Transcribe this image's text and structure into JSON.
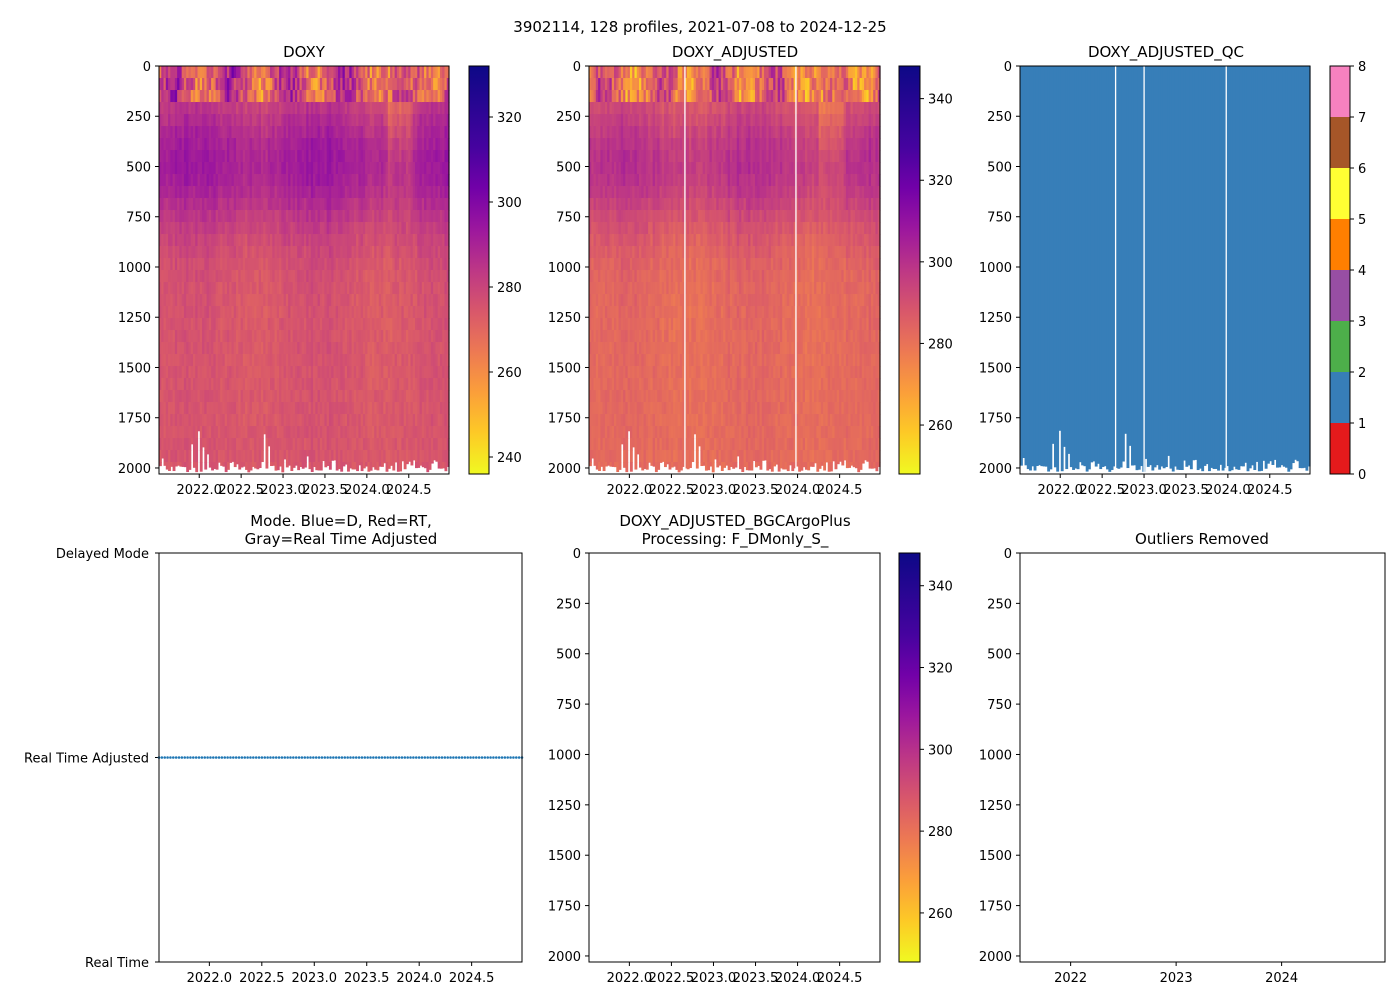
{
  "figure": {
    "suptitle": "3902114, 128 profiles, 2021-07-08 to 2024-12-25",
    "colors": {
      "qc_blue": "#377eb8",
      "mode_line": "#1f77b4",
      "background": "#ffffff",
      "spine": "#000000"
    }
  },
  "chart_data": [
    {
      "id": "doxy",
      "type": "heatmap",
      "title": "DOXY",
      "xlabel": "",
      "ylabel": "",
      "xlim": [
        2021.52,
        2024.98
      ],
      "ylim": [
        2030,
        0
      ],
      "xticks": [
        2022.0,
        2022.5,
        2023.0,
        2023.5,
        2024.0,
        2024.5
      ],
      "xtick_labels": [
        "2022.0",
        "2022.5",
        "2023.0",
        "2023.5",
        "2024.0",
        "2024.5"
      ],
      "yticks": [
        0,
        250,
        500,
        750,
        1000,
        1250,
        1500,
        1750,
        2000
      ],
      "ytick_labels": [
        "0",
        "250",
        "500",
        "750",
        "1000",
        "1250",
        "1500",
        "1750",
        "2000"
      ],
      "colorbar": {
        "cmap": "plasma_r",
        "vmin": 236,
        "vmax": 332,
        "ticks": [
          240,
          260,
          280,
          300,
          320
        ],
        "tick_labels": [
          "240",
          "260",
          "280",
          "300",
          "320"
        ]
      },
      "deep_value": 279,
      "surface_low_value": 265,
      "gaps_x": []
    },
    {
      "id": "doxy_adjusted",
      "type": "heatmap",
      "title": "DOXY_ADJUSTED",
      "xlabel": "",
      "ylabel": "",
      "xlim": [
        2021.52,
        2024.98
      ],
      "ylim": [
        2030,
        0
      ],
      "xticks": [
        2022.0,
        2022.5,
        2023.0,
        2023.5,
        2024.0,
        2024.5
      ],
      "xtick_labels": [
        "2022.0",
        "2022.5",
        "2023.0",
        "2023.5",
        "2024.0",
        "2024.5"
      ],
      "yticks": [
        0,
        250,
        500,
        750,
        1000,
        1250,
        1500,
        1750,
        2000
      ],
      "ytick_labels": [
        "0",
        "250",
        "500",
        "750",
        "1000",
        "1250",
        "1500",
        "1750",
        "2000"
      ],
      "colorbar": {
        "cmap": "plasma_r",
        "vmin": 248,
        "vmax": 348,
        "ticks": [
          260,
          280,
          300,
          320,
          340
        ],
        "tick_labels": [
          "260",
          "280",
          "300",
          "320",
          "340"
        ]
      },
      "deep_value": 286,
      "surface_low_value": 270,
      "gaps_x": [
        2022.66,
        2023.98
      ]
    },
    {
      "id": "doxy_adjusted_qc",
      "type": "heatmap",
      "title": "DOXY_ADJUSTED_QC",
      "xlabel": "",
      "ylabel": "",
      "xlim": [
        2021.52,
        2024.98
      ],
      "ylim": [
        2030,
        0
      ],
      "xticks": [
        2022.0,
        2022.5,
        2023.0,
        2023.5,
        2024.0,
        2024.5
      ],
      "xtick_labels": [
        "2022.0",
        "2022.5",
        "2023.0",
        "2023.5",
        "2024.0",
        "2024.5"
      ],
      "yticks": [
        0,
        250,
        500,
        750,
        1000,
        1250,
        1500,
        1750,
        2000
      ],
      "ytick_labels": [
        "0",
        "250",
        "500",
        "750",
        "1000",
        "1250",
        "1500",
        "1750",
        "2000"
      ],
      "qc_value": 1,
      "colorbar": {
        "cmap": "Set1 (discrete QC)",
        "vmin": 0,
        "vmax": 8,
        "ticks": [
          0,
          1,
          2,
          3,
          4,
          5,
          6,
          7,
          8
        ],
        "tick_labels": [
          "0",
          "1",
          "2",
          "3",
          "4",
          "5",
          "6",
          "7",
          "8"
        ],
        "segment_colors": [
          "#e41a1c",
          "#377eb8",
          "#4daf4a",
          "#984ea3",
          "#ff7f00",
          "#ffff33",
          "#a65628",
          "#f781bf",
          "#999999"
        ]
      },
      "gaps_x": [
        2022.66,
        2023.0,
        2023.98
      ]
    },
    {
      "id": "mode",
      "type": "scatter",
      "title": "Mode. Blue=D, Red=RT,",
      "title_line2": "Gray=Real Time Adjusted",
      "xlabel": "",
      "ylabel": "",
      "xlim": [
        2021.52,
        2024.98
      ],
      "xticks": [
        2022.0,
        2022.5,
        2023.0,
        2023.5,
        2024.0,
        2024.5
      ],
      "xtick_labels": [
        "2022.0",
        "2022.5",
        "2023.0",
        "2023.5",
        "2024.0",
        "2024.5"
      ],
      "y_categories": [
        "Delayed Mode",
        "Real Time Adjusted",
        "Real Time"
      ],
      "series": [
        {
          "name": "Real Time Adjusted",
          "y_category": "Real Time Adjusted",
          "x_start": 2021.52,
          "x_end": 2024.98,
          "count": 128
        }
      ]
    },
    {
      "id": "bgcargoplus",
      "type": "heatmap",
      "title": "DOXY_ADJUSTED_BGCArgoPlus",
      "title_line2": "Processing: F_DMonly_S_",
      "xlabel": "",
      "ylabel": "",
      "xlim": [
        2021.52,
        2024.98
      ],
      "ylim": [
        2030,
        0
      ],
      "xticks": [
        2022.0,
        2022.5,
        2023.0,
        2023.5,
        2024.0,
        2024.5
      ],
      "xtick_labels": [
        "2022.0",
        "2022.5",
        "2023.0",
        "2023.5",
        "2024.0",
        "2024.5"
      ],
      "yticks": [
        0,
        250,
        500,
        750,
        1000,
        1250,
        1500,
        1750,
        2000
      ],
      "ytick_labels": [
        "0",
        "250",
        "500",
        "750",
        "1000",
        "1250",
        "1500",
        "1750",
        "2000"
      ],
      "empty": true,
      "colorbar": {
        "cmap": "plasma_r",
        "vmin": 248,
        "vmax": 348,
        "ticks": [
          260,
          280,
          300,
          320,
          340
        ],
        "tick_labels": [
          "260",
          "280",
          "300",
          "320",
          "340"
        ]
      }
    },
    {
      "id": "outliers",
      "type": "scatter",
      "title": "Outliers Removed",
      "xlabel": "",
      "ylabel": "",
      "xlim": [
        2021.52,
        2024.98
      ],
      "ylim": [
        2030,
        0
      ],
      "xticks": [
        2022,
        2023,
        2024
      ],
      "xtick_labels": [
        "2022",
        "2023",
        "2024"
      ],
      "yticks": [
        0,
        250,
        500,
        750,
        1000,
        1250,
        1500,
        1750,
        2000
      ],
      "ytick_labels": [
        "0",
        "250",
        "500",
        "750",
        "1000",
        "1250",
        "1500",
        "1750",
        "2000"
      ],
      "empty": true
    }
  ]
}
